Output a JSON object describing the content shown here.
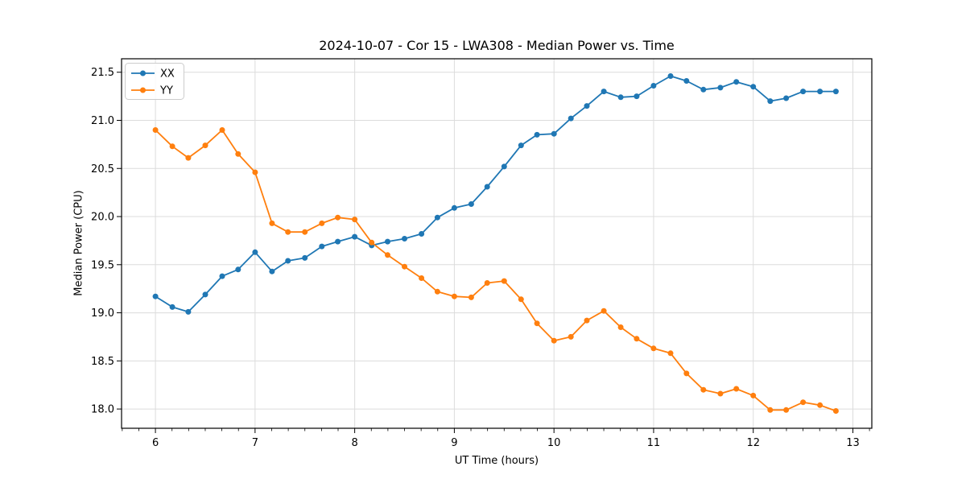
{
  "figure": {
    "background": "#ffffff"
  },
  "chart_data": {
    "type": "line",
    "title": "2024-10-07 - Cor 15 - LWA308 - Median Power vs. Time",
    "xlabel": "UT Time (hours)",
    "ylabel": "Median Power (CPU)",
    "x": [
      6.0,
      6.17,
      6.33,
      6.5,
      6.67,
      6.83,
      7.0,
      7.17,
      7.33,
      7.5,
      7.67,
      7.83,
      8.0,
      8.17,
      8.33,
      8.5,
      8.67,
      8.83,
      9.0,
      9.17,
      9.33,
      9.5,
      9.67,
      9.83,
      10.0,
      10.17,
      10.33,
      10.5,
      10.67,
      10.83,
      11.0,
      11.17,
      11.33,
      11.5,
      11.67,
      11.83,
      12.0,
      12.17,
      12.33,
      12.5,
      12.67,
      12.83
    ],
    "series": [
      {
        "name": "XX",
        "color": "#1f77b4",
        "marker": "circle",
        "values": [
          19.17,
          19.06,
          19.01,
          19.19,
          19.38,
          19.45,
          19.63,
          19.43,
          19.54,
          19.57,
          19.69,
          19.74,
          19.79,
          19.7,
          19.74,
          19.77,
          19.82,
          19.99,
          20.09,
          20.13,
          20.31,
          20.52,
          20.74,
          20.85,
          20.86,
          21.02,
          21.15,
          21.3,
          21.24,
          21.25,
          21.36,
          21.46,
          21.41,
          21.32,
          21.34,
          21.4,
          21.35,
          21.2,
          21.23,
          21.3,
          21.3,
          21.3
        ]
      },
      {
        "name": "YY",
        "color": "#ff7f0e",
        "marker": "circle",
        "values": [
          20.9,
          20.73,
          20.61,
          20.74,
          20.9,
          20.65,
          20.46,
          19.93,
          19.84,
          19.84,
          19.93,
          19.99,
          19.97,
          19.73,
          19.6,
          19.48,
          19.36,
          19.22,
          19.17,
          19.16,
          19.31,
          19.33,
          19.14,
          18.89,
          18.71,
          18.75,
          18.92,
          19.02,
          18.85,
          18.73,
          18.63,
          18.58,
          18.37,
          18.2,
          18.16,
          18.21,
          18.14,
          17.99,
          17.99,
          18.07,
          18.04,
          17.98
        ]
      }
    ],
    "xlim": [
      5.66,
      13.19
    ],
    "ylim": [
      17.8,
      21.64
    ],
    "xticks": [
      6,
      7,
      8,
      9,
      10,
      11,
      12,
      13
    ],
    "yticks": [
      18.0,
      18.5,
      19.0,
      19.5,
      20.0,
      20.5,
      21.0,
      21.5
    ],
    "minor_xtick_step": 0.1666667,
    "grid": true,
    "grid_color": "#dcdcdc",
    "spine_color": "#000000",
    "tick_color": "#000000",
    "tick_label_color": "#000000",
    "legend": {
      "position": "upper-left",
      "labels": [
        "XX",
        "YY"
      ],
      "border_color": "#cccccc",
      "background": "#ffffff"
    }
  }
}
